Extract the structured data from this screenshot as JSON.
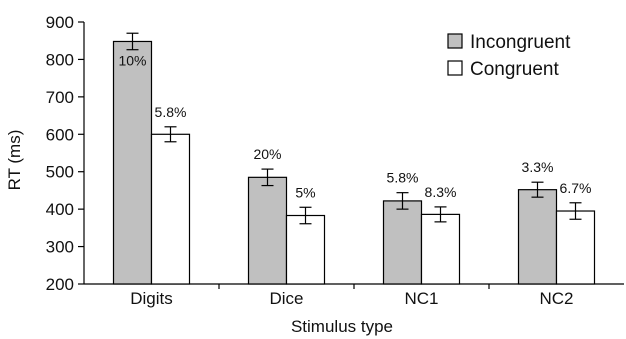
{
  "chart_data": {
    "type": "bar",
    "xlabel": "Stimulus type",
    "ylabel": "RT (ms)",
    "ylim": [
      200,
      900
    ],
    "yticks": [
      200,
      300,
      400,
      500,
      600,
      700,
      800,
      900
    ],
    "grid": false,
    "legend_position": "top-right",
    "categories": [
      "Digits",
      "Dice",
      "NC1",
      "NC2"
    ],
    "series": [
      {
        "name": "Incongruent",
        "color": "#c0c0c0",
        "values": [
          848,
          485,
          422,
          452
        ],
        "errors": [
          22,
          22,
          22,
          20
        ],
        "labels": [
          "10%",
          "20%",
          "5.8%",
          "3.3%"
        ]
      },
      {
        "name": "Congruent",
        "color": "#ffffff",
        "values": [
          600,
          383,
          386,
          395
        ],
        "errors": [
          20,
          22,
          20,
          22
        ],
        "labels": [
          "5.8%",
          "5%",
          "8.3%",
          "6.7%"
        ]
      }
    ]
  }
}
